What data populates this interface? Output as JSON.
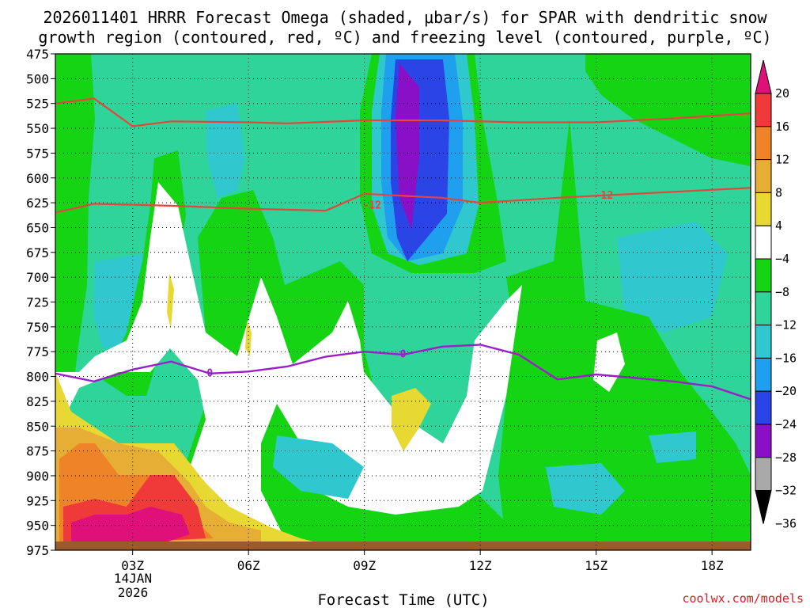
{
  "chart_data": {
    "type": "heatmap",
    "title_line1": "2026011401 HRRR Forecast Omega (shaded, μbar/s) for SPAR with dendritic snow",
    "title_line2": "growth region (contoured, red, ºC) and freezing level (contoured, purple, ºC)",
    "xlabel": "Forecast Time (UTC)",
    "x_range_hours": [
      0,
      18
    ],
    "x_ticks": [
      {
        "hour": 2,
        "label": "03Z"
      },
      {
        "hour": 5,
        "label": "06Z"
      },
      {
        "hour": 8,
        "label": "09Z"
      },
      {
        "hour": 11,
        "label": "12Z"
      },
      {
        "hour": 14,
        "label": "15Z"
      },
      {
        "hour": 17,
        "label": "18Z"
      }
    ],
    "date_label_line1": "14JAN",
    "date_label_line2": "2026",
    "y_ticks_mb": [
      475,
      500,
      525,
      550,
      575,
      600,
      625,
      650,
      675,
      700,
      725,
      750,
      775,
      800,
      825,
      850,
      875,
      900,
      925,
      950,
      975
    ],
    "y_range_mb": [
      475,
      975
    ],
    "colorbar": {
      "labels": [
        "20",
        "16",
        "12",
        "8",
        "4",
        "−4",
        "−8",
        "−12",
        "−16",
        "−20",
        "−24",
        "−28",
        "−32",
        "−36"
      ],
      "colors": [
        "#e0107a",
        "#f03a3a",
        "#ee8427",
        "#e6ae35",
        "#e8d832",
        "#ffffff",
        "#14d414",
        "#2ed49a",
        "#2fc8cf",
        "#1fa0ee",
        "#2a44e6",
        "#8a10c8",
        "#a9a9a9",
        "#000000"
      ]
    },
    "dgz_contours_C": [
      {
        "label": "-12",
        "points": [
          [
            0,
            525
          ],
          [
            1,
            520
          ],
          [
            2,
            548
          ],
          [
            3,
            543
          ],
          [
            5,
            544
          ],
          [
            6,
            545
          ],
          [
            8,
            542
          ],
          [
            10,
            542
          ],
          [
            12,
            544
          ],
          [
            14,
            544
          ],
          [
            16,
            540
          ],
          [
            18,
            535
          ]
        ]
      },
      {
        "label": "-12",
        "points": [
          [
            0,
            635
          ],
          [
            1,
            626
          ],
          [
            3,
            628
          ],
          [
            5,
            631
          ],
          [
            7,
            633
          ],
          [
            8,
            616
          ],
          [
            10,
            620
          ],
          [
            11,
            625
          ],
          [
            13,
            620
          ],
          [
            16,
            614
          ],
          [
            18,
            610
          ]
        ]
      }
    ],
    "freezing_level_C": {
      "label": "0",
      "points": [
        [
          0,
          797
        ],
        [
          1,
          805
        ],
        [
          2,
          793
        ],
        [
          3,
          785
        ],
        [
          4,
          797
        ],
        [
          5,
          795
        ],
        [
          6,
          790
        ],
        [
          7,
          780
        ],
        [
          8,
          775
        ],
        [
          9,
          778
        ],
        [
          10,
          770
        ],
        [
          11,
          768
        ],
        [
          12,
          778
        ],
        [
          13,
          803
        ],
        [
          14,
          798
        ],
        [
          16,
          805
        ],
        [
          17,
          810
        ],
        [
          18,
          823
        ]
      ]
    },
    "credit": "coolwx.com/models"
  }
}
